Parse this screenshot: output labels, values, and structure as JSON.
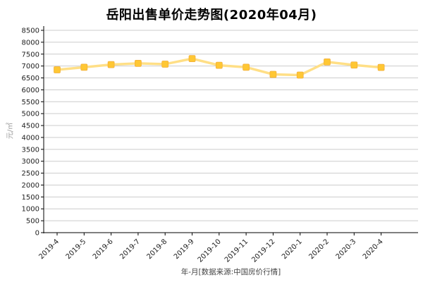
{
  "title": "岳阳出售单价走势图(2020年04月)",
  "chart_data": {
    "type": "line",
    "title": "岳阳出售单价走势图(2020年04月)",
    "xlabel": "年-月[数据来源:中国房价行情]",
    "ylabel": "元/㎡",
    "categories": [
      "2019-4",
      "2019-5",
      "2019-6",
      "2019-7",
      "2019-8",
      "2019-9",
      "2019-10",
      "2019-11",
      "2019-12",
      "2020-1",
      "2020-2",
      "2020-3",
      "2020-4"
    ],
    "values": [
      6840,
      6950,
      7060,
      7110,
      7080,
      7310,
      7030,
      6950,
      6650,
      6620,
      7170,
      7040,
      6940
    ],
    "ylim": [
      0,
      8500
    ],
    "ytick_step": 500,
    "grid": "horizontal",
    "legend": "none",
    "colors": {
      "line": "#FFDF86",
      "marker": "#FFC733",
      "marker_border": "#F0AE3C",
      "grid": "#CCCCCC",
      "axis": "#000000",
      "tick_label": "#222222",
      "background": "#FFFFFF"
    }
  }
}
